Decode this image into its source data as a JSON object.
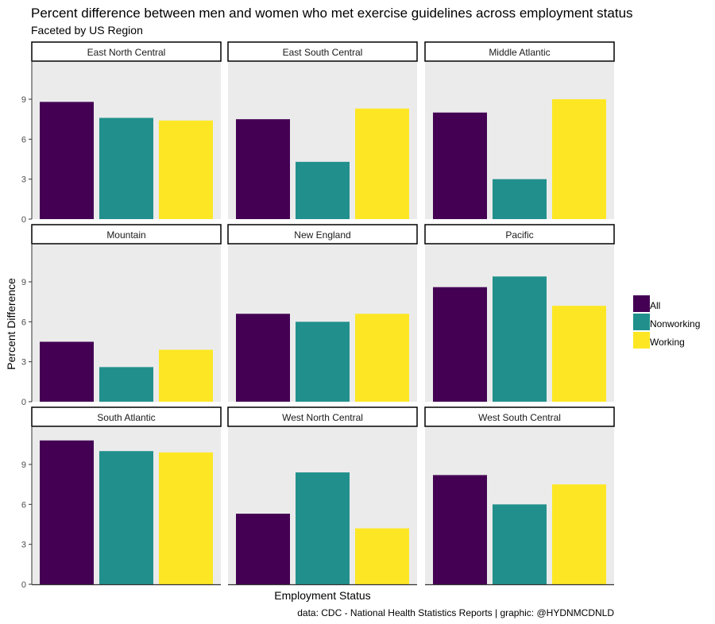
{
  "chart_data": {
    "type": "bar",
    "title": "Percent difference between men and women who met exercise guidelines across employment status",
    "subtitle": "Faceted by US Region",
    "xlabel": "Employment Status",
    "ylabel": "Percent Difference",
    "caption": "data: CDC - National Health Statistics Reports | graphic: @HYDNMCDNLD",
    "ylim": [
      0,
      11.8
    ],
    "yticks": [
      0,
      3,
      6,
      9
    ],
    "grid": false,
    "legend_position": "right",
    "series": [
      {
        "name": "All",
        "color": "#440154"
      },
      {
        "name": "Nonworking",
        "color": "#21908C"
      },
      {
        "name": "Working",
        "color": "#FDE725"
      }
    ],
    "facets": [
      {
        "region": "East North Central",
        "values": [
          8.8,
          7.6,
          7.4
        ]
      },
      {
        "region": "East South Central",
        "values": [
          7.5,
          4.3,
          8.3
        ]
      },
      {
        "region": "Middle Atlantic",
        "values": [
          8.0,
          3.0,
          9.0
        ]
      },
      {
        "region": "Mountain",
        "values": [
          4.5,
          2.6,
          3.9
        ]
      },
      {
        "region": "New England",
        "values": [
          6.6,
          6.0,
          6.6
        ]
      },
      {
        "region": "Pacific",
        "values": [
          8.6,
          9.4,
          7.2
        ]
      },
      {
        "region": "South Atlantic",
        "values": [
          10.8,
          10.0,
          9.9
        ]
      },
      {
        "region": "West North Central",
        "values": [
          5.3,
          8.4,
          4.2
        ]
      },
      {
        "region": "West South Central",
        "values": [
          8.2,
          6.0,
          7.5
        ]
      }
    ]
  }
}
